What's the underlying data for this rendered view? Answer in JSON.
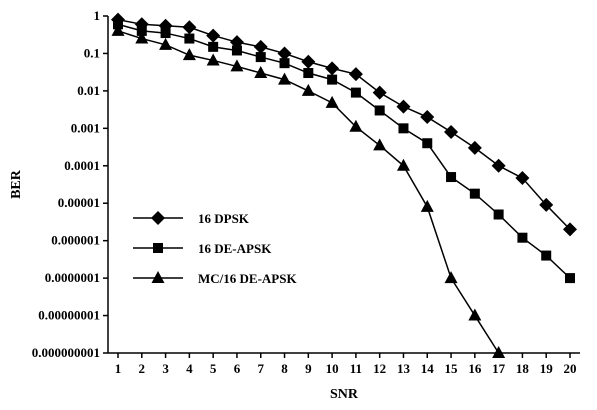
{
  "chart_data": {
    "type": "line",
    "xlabel": "SNR",
    "ylabel": "BER",
    "y_scale": "log",
    "ylim": [
      1e-09,
      1
    ],
    "xlim": [
      1,
      20
    ],
    "x_ticks": [
      "1",
      "2",
      "3",
      "4",
      "5",
      "6",
      "7",
      "8",
      "9",
      "10",
      "11",
      "12",
      "13",
      "14",
      "15",
      "16",
      "17",
      "18",
      "19",
      "20"
    ],
    "y_ticks": [
      {
        "value": 1,
        "label": "1"
      },
      {
        "value": 0.1,
        "label": "0.1"
      },
      {
        "value": 0.01,
        "label": "0.01"
      },
      {
        "value": 0.001,
        "label": "0.001"
      },
      {
        "value": 0.0001,
        "label": "0.0001"
      },
      {
        "value": 1e-05,
        "label": "0.00001"
      },
      {
        "value": 1e-06,
        "label": "0.000001"
      },
      {
        "value": 1e-07,
        "label": "0.0000001"
      },
      {
        "value": 1e-08,
        "label": "0.00000001"
      },
      {
        "value": 1e-09,
        "label": "0.000000001"
      }
    ],
    "grid": false,
    "legend_position": "lower-left",
    "series": [
      {
        "name": "16 DPSK",
        "marker": "diamond",
        "x": [
          1,
          2,
          3,
          4,
          5,
          6,
          7,
          8,
          9,
          10,
          11,
          12,
          13,
          14,
          15,
          16,
          17,
          18,
          19,
          20
        ],
        "y": [
          0.8,
          0.6,
          0.55,
          0.5,
          0.3,
          0.2,
          0.15,
          0.1,
          0.06,
          0.04,
          0.028,
          0.009,
          0.0038,
          0.002,
          0.0008,
          0.0003,
          0.0001,
          4.7e-05,
          9e-06,
          2e-06
        ]
      },
      {
        "name": "16 DE-APSK",
        "marker": "square",
        "x": [
          1,
          2,
          3,
          4,
          5,
          6,
          7,
          8,
          9,
          10,
          11,
          12,
          13,
          14,
          15,
          16,
          17,
          18,
          19,
          20
        ],
        "y": [
          0.6,
          0.4,
          0.35,
          0.25,
          0.15,
          0.12,
          0.08,
          0.055,
          0.03,
          0.02,
          0.009,
          0.003,
          0.001,
          0.0004,
          5e-05,
          1.8e-05,
          5e-06,
          1.2e-06,
          4e-07,
          1e-07
        ]
      },
      {
        "name": "MC/16 DE-APSK",
        "marker": "triangle",
        "x": [
          1,
          2,
          3,
          4,
          5,
          6,
          7,
          8,
          9,
          10,
          11,
          12,
          13,
          14,
          15,
          16,
          17
        ],
        "y": [
          0.4,
          0.25,
          0.17,
          0.09,
          0.065,
          0.045,
          0.03,
          0.02,
          0.01,
          0.0048,
          0.0011,
          0.00035,
          0.0001,
          8e-06,
          1e-07,
          1e-08,
          1e-09
        ]
      }
    ]
  }
}
